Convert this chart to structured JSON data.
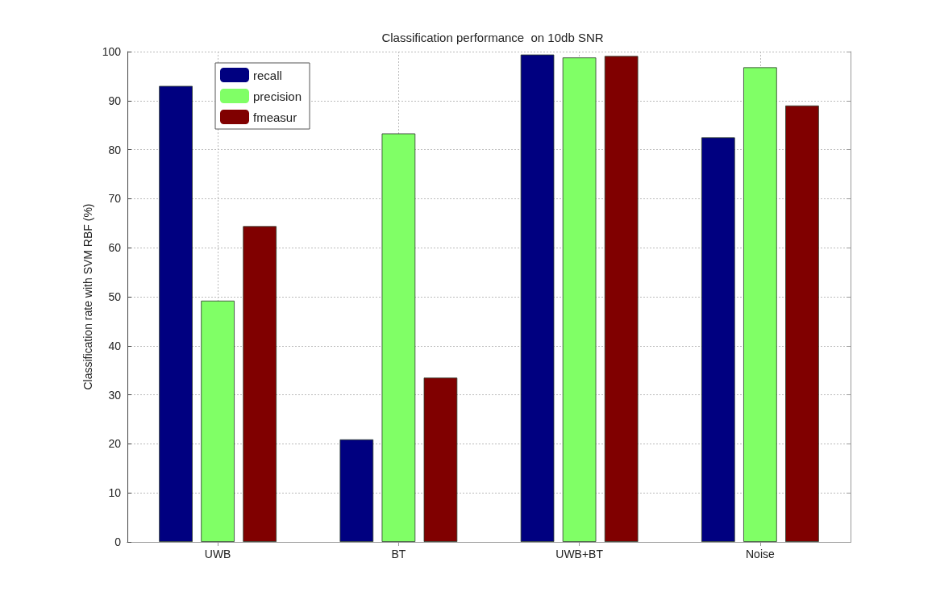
{
  "chart_data": {
    "type": "bar",
    "title": "Classification performance  on 10db SNR",
    "ylabel": "Classification rate with SVM RBF (%)",
    "categories": [
      "UWB",
      "BT",
      "UWB+BT",
      "Noise"
    ],
    "series": [
      {
        "name": "recall",
        "color": "#000080",
        "values": [
          93.0,
          20.9,
          99.4,
          82.5
        ]
      },
      {
        "name": "precision",
        "color": "#80ff66",
        "values": [
          49.2,
          83.3,
          98.8,
          96.8
        ]
      },
      {
        "name": "fmeasur",
        "color": "#800000",
        "values": [
          64.4,
          33.5,
          99.1,
          89.0
        ]
      }
    ],
    "ylim": [
      0,
      100
    ],
    "yticks": [
      0,
      10,
      20,
      30,
      40,
      50,
      60,
      70,
      80,
      90,
      100
    ],
    "grid": true,
    "legend": "top left"
  }
}
